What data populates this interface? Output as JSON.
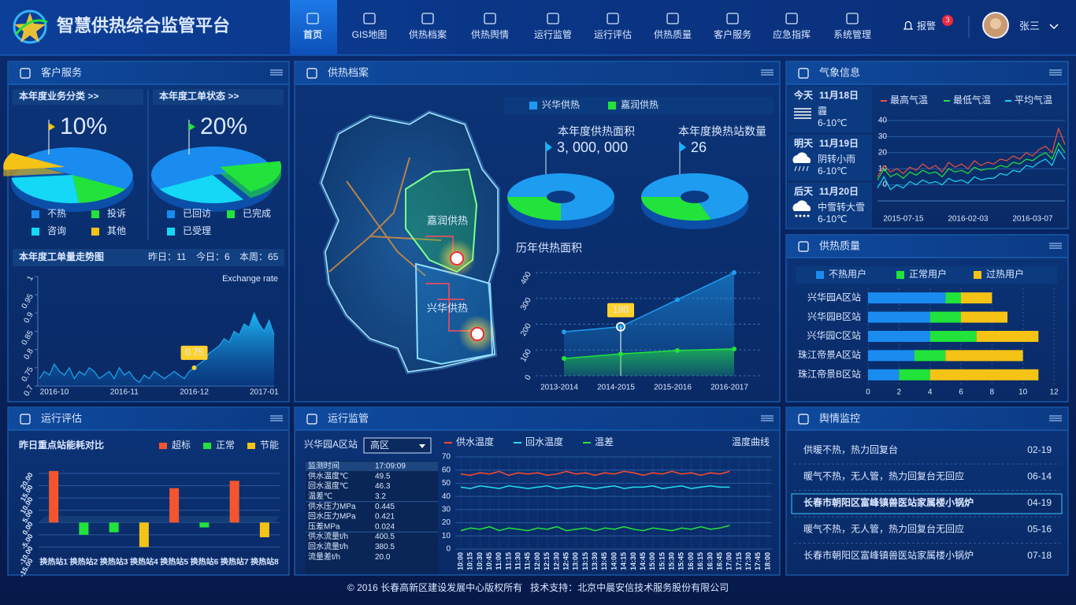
{
  "header": {
    "title": "智慧供热综合监管平台",
    "nav": [
      "首页",
      "GIS地图",
      "供热档案",
      "供热舆情",
      "运行监管",
      "运行评估",
      "供热质量",
      "客户服务",
      "应急指挥",
      "系统管理"
    ],
    "alarm": "报警",
    "alarm_count": 3,
    "user": "张三"
  },
  "customer_service": {
    "title": "客户服务",
    "business_pie": {
      "type": "pie",
      "title": "本年度业务分类 >>",
      "categories": [
        "不热",
        "投诉",
        "咨询",
        "其他"
      ],
      "values": [
        50,
        15,
        25,
        10
      ],
      "value_labels": [
        null,
        null,
        null,
        "10%"
      ],
      "colors": [
        "#1a8cf0",
        "#22e33b",
        "#14d8f5",
        "#f5c316"
      ]
    },
    "order_pie": {
      "type": "pie",
      "title": "本年度工单状态 >>",
      "categories": [
        "已回访",
        "已完成",
        "已受理"
      ],
      "values": [
        55,
        20,
        25
      ],
      "value_labels": [
        null,
        "20%",
        null
      ],
      "colors": [
        "#1a8cf0",
        "#22e33b",
        "#14d8f5"
      ]
    },
    "trend": {
      "type": "area",
      "title": "本年度工单量走势图",
      "stats": [
        "昨日：11",
        "今日：6",
        "本周：65"
      ],
      "series_label": "Exchange rate",
      "color": "#1aa9f0",
      "categories": [
        null,
        null,
        null,
        "2016-10",
        null,
        null,
        null,
        null,
        null,
        null,
        null,
        null,
        null,
        null,
        null,
        null,
        null,
        "2016-11",
        null,
        null,
        null,
        null,
        null,
        null,
        null,
        null,
        null,
        null,
        null,
        null,
        null,
        "2016-12",
        null,
        null,
        null,
        null,
        null,
        null,
        null,
        null,
        null,
        null,
        null,
        null,
        null,
        "2017-01",
        null,
        null
      ],
      "values": [
        0.72,
        0.74,
        0.73,
        0.76,
        0.74,
        0.73,
        0.75,
        0.72,
        0.74,
        0.73,
        0.75,
        0.74,
        0.72,
        0.73,
        0.74,
        0.72,
        0.75,
        0.73,
        0.74,
        0.72,
        0.71,
        0.73,
        0.72,
        0.74,
        0.73,
        0.72,
        0.73,
        0.74,
        0.73,
        0.72,
        0.74,
        0.75,
        0.76,
        0.77,
        0.79,
        0.8,
        0.81,
        0.83,
        0.82,
        0.85,
        0.84,
        0.87,
        0.86,
        0.9,
        0.87,
        0.85,
        0.88,
        0.84
      ],
      "value_labels": [
        null,
        null,
        null,
        null,
        null,
        null,
        null,
        null,
        null,
        null,
        null,
        null,
        null,
        null,
        null,
        null,
        null,
        null,
        null,
        null,
        null,
        null,
        null,
        null,
        null,
        null,
        null,
        null,
        null,
        null,
        null,
        "0.75",
        null,
        null,
        null,
        null,
        null,
        null,
        null,
        null,
        null,
        null,
        null,
        null,
        null,
        null,
        null,
        null
      ],
      "ylim": [
        0.7,
        1
      ],
      "yticks": [
        0.7,
        0.75,
        0.8,
        0.85,
        0.9,
        0.95,
        1
      ]
    }
  },
  "heating_archive": {
    "title": "供热档案",
    "map_labels": [
      "嘉润供热",
      "兴华供热"
    ],
    "legend": [
      {
        "name": "兴华供热",
        "color": "#1e9cf0"
      },
      {
        "name": "嘉润供热",
        "color": "#22e33b"
      }
    ],
    "area_donut": {
      "type": "donut",
      "title": "本年度供热面积",
      "total": "3, 000, 000",
      "values": [
        75,
        25
      ]
    },
    "station_donut": {
      "type": "donut",
      "title": "本年度换热站数量",
      "total": 26,
      "values": [
        70,
        30
      ]
    },
    "history": {
      "type": "area",
      "title": "历年供热面积",
      "categories": [
        "2013-2014",
        "2014-2015",
        "2015-2016",
        "2016-2017"
      ],
      "series": [
        {
          "color": "#1e9cf0",
          "values": [
            170,
            190,
            295,
            400
          ],
          "value_labels": [
            null,
            "190",
            null,
            null
          ]
        },
        {
          "color": "#22e33b",
          "values": [
            67,
            85,
            98,
            104
          ]
        }
      ],
      "ylim": [
        0,
        400
      ],
      "yticks": [
        0,
        100,
        200,
        300,
        400
      ]
    }
  },
  "weather": {
    "title": "气象信息",
    "days": [
      {
        "label": "今天",
        "date": "11月18日",
        "desc": "霾",
        "temp": "6-10℃"
      },
      {
        "label": "明天",
        "date": "11月19日",
        "desc": "阴转小雨",
        "temp": "6-10℃"
      },
      {
        "label": "后天",
        "date": "11月20日",
        "desc": "中雪转大雪",
        "temp": "6-10℃"
      }
    ],
    "chart": {
      "type": "line",
      "categories": [
        null,
        null,
        null,
        null,
        "2015-07-15",
        null,
        null,
        null,
        null,
        null,
        null,
        null,
        null,
        null,
        "2016-02-03",
        null,
        null,
        null,
        null,
        null,
        null,
        null,
        null,
        null,
        "2016-03-07",
        null,
        null,
        null,
        null,
        null
      ],
      "series": [
        {
          "name": "最高气温",
          "color": "#f0503c",
          "values": [
            5,
            12,
            8,
            10,
            7,
            11,
            9,
            13,
            10,
            12,
            8,
            14,
            11,
            13,
            10,
            15,
            12,
            14,
            13,
            16,
            15,
            18,
            16,
            20,
            18,
            22,
            24,
            20,
            35,
            25
          ]
        },
        {
          "name": "最低气温",
          "color": "#22e33b",
          "values": [
            3,
            10,
            5,
            7,
            4,
            8,
            6,
            9,
            7,
            8,
            5,
            10,
            8,
            9,
            7,
            11,
            9,
            10,
            10,
            12,
            11,
            14,
            13,
            16,
            15,
            18,
            20,
            16,
            26,
            20
          ]
        },
        {
          "name": "平均气温",
          "color": "#14d8f5",
          "values": [
            -2,
            5,
            -3,
            0,
            -2,
            2,
            0,
            3,
            1,
            2,
            0,
            4,
            2,
            3,
            1,
            5,
            3,
            4,
            4,
            7,
            6,
            9,
            8,
            12,
            11,
            14,
            16,
            12,
            22,
            16
          ]
        }
      ],
      "ylim": [
        -10,
        40
      ],
      "yticks": [
        0,
        10,
        20,
        30,
        40
      ]
    }
  },
  "quality": {
    "title": "供热质量",
    "chart": {
      "type": "hbar_stacked",
      "categories": [
        "兴华园A区站",
        "兴华园B区站",
        "兴华园C区站",
        "珠江帝景A区站",
        "珠江帝景B区站"
      ],
      "series": [
        {
          "name": "不热用户",
          "color": "#1a8cf0",
          "values": [
            5,
            4,
            4,
            3,
            2
          ]
        },
        {
          "name": "正常用户",
          "color": "#22e33b",
          "values": [
            1,
            2,
            3,
            2,
            2
          ]
        },
        {
          "name": "过热用户",
          "color": "#f5c316",
          "values": [
            2,
            3,
            4,
            5,
            7
          ]
        }
      ],
      "xlim": [
        0,
        12
      ],
      "xticks": [
        0,
        2,
        4,
        6,
        8,
        10,
        12
      ]
    }
  },
  "evaluation": {
    "title": "运行评估",
    "chart": {
      "type": "bar",
      "title": "昨日重点站能耗对比",
      "categories": [
        "换热站1",
        "换热站2",
        "换热站3",
        "换热站4",
        "换热站5",
        "换热站6",
        "换热站7",
        "换热站8"
      ],
      "series": [
        {
          "name": "超标",
          "color": "#f5552e",
          "values": [
            21,
            null,
            null,
            null,
            14,
            null,
            17,
            null
          ]
        },
        {
          "name": "正常",
          "color": "#22e33b",
          "values": [
            null,
            -5,
            -4,
            null,
            null,
            -2,
            null,
            null
          ]
        },
        {
          "name": "节能",
          "color": "#f5c316",
          "values": [
            null,
            null,
            null,
            -10,
            null,
            null,
            null,
            -6
          ]
        }
      ],
      "ylim": [
        -15,
        20
      ],
      "yticks": [
        {
          "value": 20,
          "label": "20.00"
        },
        {
          "value": 15,
          "label": "15.00"
        },
        {
          "value": 10,
          "label": "10.00"
        },
        {
          "value": 5,
          "label": "5.00"
        },
        {
          "value": 0,
          "label": "0.00"
        },
        {
          "value": -5,
          "label": "-5.00"
        },
        {
          "value": -10,
          "label": "-10.00"
        },
        {
          "value": -15,
          "label": "-15.00"
        }
      ]
    }
  },
  "monitoring": {
    "title": "运行监管",
    "station": "兴华园A区站",
    "zone": "高区",
    "table": [
      {
        "name": "监测时间",
        "value": "17:09:09"
      },
      {
        "name": "供水温度℃",
        "value": "49.5"
      },
      {
        "name": "回水温度℃",
        "value": "46.3",
        "alert": true
      },
      {
        "name": "温差℃",
        "value": "3.2"
      },
      {
        "name": "供水压力MPa",
        "value": "0.445"
      },
      {
        "name": "回水压力MPa",
        "value": "0.421"
      },
      {
        "name": "压差MPa",
        "value": "0.024"
      },
      {
        "name": "供水流量t/h",
        "value": "400.5"
      },
      {
        "name": "回水流量t/h",
        "value": "380.5",
        "alert": true
      },
      {
        "name": "流量差t/h",
        "value": "20.0"
      }
    ],
    "chart": {
      "type": "line",
      "title": "温度曲线",
      "categories": [
        "10:00",
        "10:15",
        "10:30",
        "10:45",
        "11:00",
        "11:15",
        "11:30",
        "11:45",
        "12:00",
        "12:15",
        "12:30",
        "12:45",
        "13:00",
        "13:15",
        "13:30",
        "13:45",
        "14:00",
        "14:15",
        "14:30",
        "14:45",
        "15:00",
        "15:15",
        "15:30",
        "15:45",
        "16:00",
        "16:15",
        "16:30",
        "16:45",
        "17:00",
        "17:15",
        "17:30",
        "17:45",
        "18:00"
      ],
      "series": [
        {
          "name": "供水温度",
          "color": "#ff4a2e",
          "values": [
            57,
            56,
            58,
            57,
            59,
            56,
            58,
            57,
            58,
            56,
            57,
            59,
            57,
            58,
            56,
            58,
            57,
            59,
            58,
            56,
            58,
            57,
            59,
            57,
            58,
            56,
            58,
            57,
            59,
            null,
            null,
            null,
            null
          ]
        },
        {
          "name": "回水温度",
          "color": "#26e0e8",
          "values": [
            47,
            46,
            48,
            47,
            46,
            48,
            47,
            46,
            47,
            48,
            46,
            47,
            48,
            47,
            46,
            47,
            48,
            46,
            47,
            47,
            48,
            46,
            47,
            48,
            46,
            47,
            48,
            47,
            47,
            null,
            null,
            null,
            null
          ]
        },
        {
          "name": "温差",
          "color": "#22e33b",
          "values": [
            14,
            16,
            15,
            17,
            14,
            16,
            15,
            14,
            16,
            15,
            17,
            14,
            15,
            16,
            14,
            16,
            15,
            17,
            15,
            14,
            16,
            15,
            14,
            16,
            15,
            17,
            15,
            16,
            18,
            null,
            null,
            null,
            null
          ]
        }
      ],
      "ylim": [
        0,
        70
      ],
      "yticks": [
        0,
        10,
        20,
        30,
        40,
        50,
        60,
        70
      ]
    }
  },
  "opinion": {
    "title": "舆情监控",
    "items": [
      {
        "text": "供暖不热，热力回复台",
        "date": "02-19"
      },
      {
        "text": "暖气不热，无人管，热力回复台无回应",
        "date": "06-14"
      },
      {
        "text": "长春市朝阳区富峰镇兽医站家属楼小锅炉",
        "date": "04-19",
        "selected": true
      },
      {
        "text": "暖气不热，无人管，热力回复台无回应",
        "date": "05-16"
      },
      {
        "text": "长春市朝阳区富峰镇兽医站家属楼小锅炉",
        "date": "07-18"
      }
    ]
  },
  "footer": "© 2016 长春高新区建设发展中心版权所有   技术支持：北京中晨安信技术服务股份有限公司"
}
